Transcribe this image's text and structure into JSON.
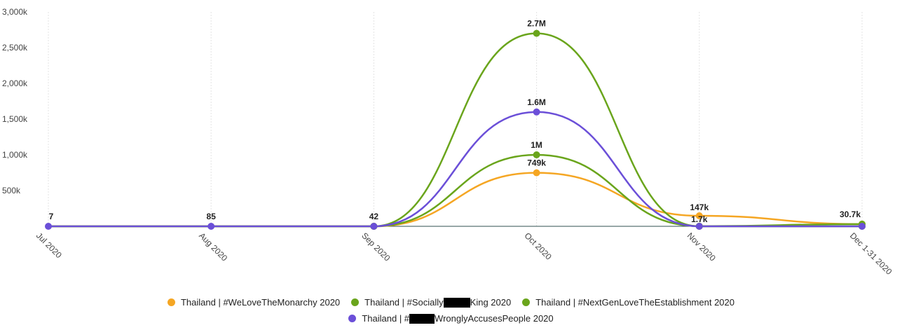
{
  "chart_data": {
    "type": "line",
    "categories": [
      "Jul 2020",
      "Aug 2020",
      "Sep 2020",
      "Oct 2020",
      "Nov 2020",
      "Dec 1-31 2020"
    ],
    "y_ticks": [
      "500k",
      "1,000k",
      "1,500k",
      "2,000k",
      "2,500k",
      "3,000k"
    ],
    "ylim": [
      0,
      3000000
    ],
    "grid": "vertical",
    "legend_position": "bottom",
    "series": [
      {
        "name": "Thailand | #WeLoveTheMonarchy 2020",
        "color": "#f5a623",
        "values": [
          0,
          0,
          0,
          749000,
          147000,
          30700
        ],
        "labels": [
          "",
          "",
          "",
          "749k",
          "147k",
          ""
        ]
      },
      {
        "name_parts": [
          "Thailand | #Socially",
          "King 2020"
        ],
        "color": "#6aa51c",
        "values": [
          0,
          0,
          0,
          1000000,
          1700,
          30700
        ],
        "labels": [
          "",
          "",
          "",
          "1M",
          "1.7k",
          "30.7k"
        ]
      },
      {
        "name": "Thailand | #NextGenLoveTheEstablishment 2020",
        "color": "#6aa51c",
        "values": [
          0,
          0,
          0,
          2700000,
          0,
          0
        ],
        "labels": [
          "",
          "",
          "",
          "2.7M",
          "",
          ""
        ]
      },
      {
        "name_parts": [
          "Thailand | #",
          "WronglyAccusesPeople 2020"
        ],
        "color": "#6b4fd8",
        "values": [
          7,
          85,
          42,
          1600000,
          0,
          0
        ],
        "labels": [
          "7",
          "85",
          "42",
          "1.6M",
          "",
          ""
        ]
      }
    ]
  }
}
